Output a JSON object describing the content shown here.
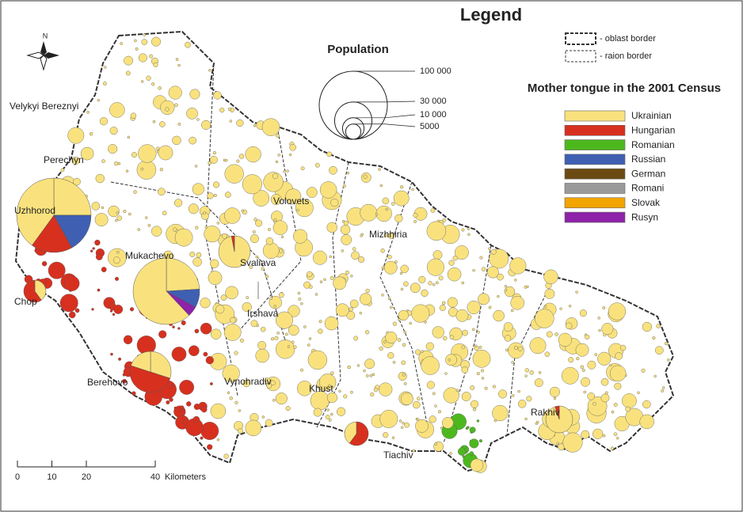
{
  "legend": {
    "title": "Legend",
    "borders": [
      "- oblast border",
      "- raion border"
    ],
    "population": {
      "title": "Population",
      "sizes": [
        {
          "value": 100000,
          "label": "100 000"
        },
        {
          "value": 30000,
          "label": "30 000"
        },
        {
          "value": 10000,
          "label": "10 000"
        },
        {
          "value": 5000,
          "label": "5000"
        }
      ]
    },
    "mother_tongue": {
      "title": "Mother tongue in the 2001 Census",
      "items": [
        {
          "name": "Ukrainian",
          "color": "#f9e27e"
        },
        {
          "name": "Hungarian",
          "color": "#d7301f"
        },
        {
          "name": "Romanian",
          "color": "#4db81e"
        },
        {
          "name": "Russian",
          "color": "#3f5fb3"
        },
        {
          "name": "German",
          "color": "#6b4a12"
        },
        {
          "name": "Romani",
          "color": "#9a9a9a"
        },
        {
          "name": "Slovak",
          "color": "#f2a400"
        },
        {
          "name": "Rusyn",
          "color": "#8e22a8"
        }
      ]
    }
  },
  "map": {
    "north": "N",
    "places": [
      "Velykyi Bereznyi",
      "Perechyn",
      "Uzhhorod",
      "Chop",
      "Mukachevo",
      "Svaliava",
      "Volovets",
      "Mizhhiria",
      "Irshava",
      "Berehovo",
      "Vynohradiv",
      "Khust",
      "Tiachiv",
      "Rakhiv"
    ],
    "scale": {
      "ticks": [
        0,
        10,
        20,
        40
      ],
      "unit": "Kilometers"
    }
  }
}
